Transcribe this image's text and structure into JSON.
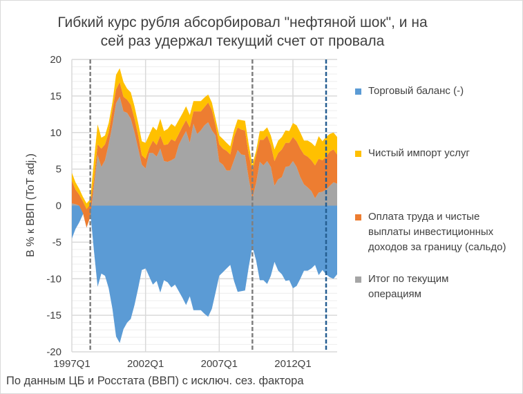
{
  "title_lines": [
    "Гибкий курс рубля абсорбировал \"нефтяной шок\", и на",
    "сей раз удержал текущий счет от провала"
  ],
  "source_note": "По данным ЦБ и Росстата (ВВП) с исключ. сез. фактора",
  "colors": {
    "trade": "#5B9BD5",
    "services": "#FFC000",
    "income": "#ED7D31",
    "current_account": "#A5A5A5",
    "marker_grey": "#7F7F7F",
    "marker_blue": "#255E91"
  },
  "legend": [
    {
      "key": "trade",
      "label": "Торговый баланс (-)"
    },
    {
      "key": "services",
      "label": "Чистый импорт услуг"
    },
    {
      "key": "income",
      "label": "Оплата труда и чистые выплаты инвестиционных доходов за границу (сальдо)"
    },
    {
      "key": "current_account",
      "label": "Итог по текущим операциям"
    }
  ],
  "chart_data": {
    "type": "area",
    "stacked": true,
    "title": "Гибкий курс рубля абсорбировал \"нефтяной шок\", и на сей раз удержал текущий счет от провала",
    "xlabel": "",
    "ylabel": "В % к ВВП (ToT adj.)",
    "x_start": "1997Q1",
    "x_end": "2015Q1",
    "x_ticks": [
      "1997Q1",
      "2002Q1",
      "2007Q1",
      "2012Q1"
    ],
    "ylim": [
      -20,
      20
    ],
    "y_ticks": [
      20,
      15,
      10,
      5,
      0,
      -5,
      -10,
      -15,
      -20
    ],
    "grid": true,
    "legend_position": "right",
    "markers": [
      {
        "quarter": "1998Q2",
        "style": "grey-dashed"
      },
      {
        "quarter": "2009Q2",
        "style": "grey-dashed"
      },
      {
        "quarter": "2014Q2",
        "style": "blue-dashed"
      }
    ],
    "series": [
      {
        "key": "current_account",
        "name": "Итог по текущим операциям",
        "values": [
          0.3,
          0.2,
          0,
          -1,
          -3,
          -1.5,
          2.7,
          6.9,
          5.3,
          6.2,
          8.4,
          11,
          14,
          14.9,
          12.9,
          12.7,
          11.9,
          10,
          7.8,
          5.6,
          5.1,
          7.2,
          7.2,
          6.7,
          7.8,
          6.1,
          6,
          6.2,
          6.5,
          8.3,
          9.3,
          10.2,
          8.6,
          11.2,
          9.8,
          10.3,
          11,
          11.4,
          10.3,
          9.6,
          6,
          5.6,
          4.8,
          4.8,
          6.2,
          7.6,
          7,
          6.9,
          3.7,
          1,
          3.1,
          6,
          5.5,
          6.1,
          5.3,
          2.7,
          3.6,
          3.9,
          5.3,
          5.4,
          6.1,
          5.3,
          3.9,
          2.9,
          2.5,
          2,
          1,
          1.8,
          1.9,
          2.2,
          2.7,
          3.2,
          3
        ]
      },
      {
        "key": "income",
        "name": "Оплата труда и чистые выплаты инвестиционных доходов за границу (сальдо)",
        "values": [
          3.1,
          2.0,
          1.5,
          1.6,
          2.5,
          1.7,
          1.0,
          1.5,
          2.5,
          2.2,
          1.6,
          2.1,
          1.9,
          2.0,
          2.0,
          1.8,
          1.9,
          1.9,
          1.8,
          1.3,
          1.3,
          0.7,
          1.7,
          1.6,
          1.8,
          2.2,
          2.4,
          2.9,
          2.3,
          1.5,
          1.5,
          1.5,
          2.1,
          1.7,
          3.1,
          2.6,
          2.5,
          2.7,
          2.8,
          1.4,
          2.4,
          2.2,
          2.7,
          2.2,
          3.2,
          3.1,
          3.4,
          3.4,
          3.3,
          3.8,
          3.8,
          3.0,
          3.5,
          3.5,
          3.0,
          3.4,
          3.6,
          3.8,
          3.3,
          3.2,
          3.3,
          3.5,
          3.9,
          4.1,
          4.2,
          4.2,
          4.5,
          4.6,
          4.3,
          4.5,
          4.7,
          4.5,
          4.0
        ]
      },
      {
        "key": "services",
        "name": "Чистый импорт услуг",
        "values": [
          1.1,
          1.0,
          0.8,
          0.6,
          0.8,
          0.7,
          2.5,
          2.7,
          1.5,
          1.2,
          1.3,
          1.0,
          2.0,
          1.9,
          2.0,
          1.5,
          1.7,
          1.7,
          1.7,
          1.9,
          2.2,
          1.8,
          1.9,
          2.0,
          2.3,
          1.9,
          2.1,
          2.1,
          2.0,
          1.9,
          1.8,
          1.9,
          1.7,
          1.4,
          1.4,
          1.4,
          1.3,
          1.1,
          1.0,
          0.9,
          1.2,
          1.3,
          1.1,
          1.1,
          0.9,
          1.1,
          1.3,
          1.3,
          1.4,
          0.8,
          0.6,
          1.2,
          1.2,
          1.1,
          1.3,
          1.6,
          1.7,
          1.7,
          1.7,
          1.6,
          1.9,
          2.2,
          2.2,
          1.9,
          2.2,
          2.4,
          2.6,
          3.1,
          2.6,
          2.7,
          2.4,
          2.3,
          2.4
        ]
      },
      {
        "key": "trade",
        "name": "Торговый баланс (-)",
        "values": [
          -4.5,
          -3.2,
          -2.3,
          -1.2,
          -0.3,
          -0.9,
          -6.2,
          -11.1,
          -9.3,
          -9.6,
          -11.3,
          -14.1,
          -17.9,
          -18.8,
          -16.9,
          -16,
          -15.5,
          -13.6,
          -11.3,
          -8.8,
          -8.6,
          -9.7,
          -10.8,
          -10.3,
          -11.9,
          -10.2,
          -10.5,
          -11.2,
          -10.8,
          -11.7,
          -12.6,
          -13.6,
          -12.4,
          -14.3,
          -14.3,
          -14.3,
          -14.8,
          -15.2,
          -14.1,
          -11.9,
          -9.6,
          -9.1,
          -8.6,
          -8.1,
          -10.3,
          -11.8,
          -11.7,
          -11.6,
          -8.4,
          -5.6,
          -7.5,
          -10.2,
          -10.2,
          -10.7,
          -9.6,
          -7.7,
          -8.9,
          -9.4,
          -10.3,
          -10.2,
          -11.3,
          -11,
          -10,
          -8.9,
          -8.9,
          -8.6,
          -8.1,
          -9.5,
          -8.8,
          -9.4,
          -9.8,
          -10,
          -9.4
        ]
      }
    ]
  }
}
